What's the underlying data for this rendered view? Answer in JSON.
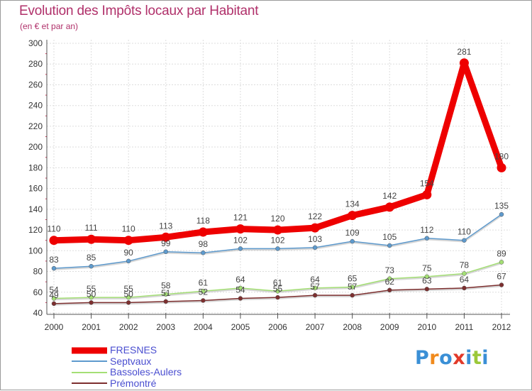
{
  "title": "Evolution des Impôts locaux par Habitant",
  "subtitle": "(en € et par an)",
  "logo": "Proxiti",
  "chart_data": {
    "type": "line",
    "title": "Evolution des Impôts locaux par Habitant",
    "subtitle": "(en € et par an)",
    "xlabel": "",
    "ylabel": "",
    "x": [
      "2000",
      "2001",
      "2002",
      "2003",
      "2004",
      "2005",
      "2006",
      "2007",
      "2008",
      "2009",
      "2010",
      "2011",
      "2012"
    ],
    "ylim": [
      40,
      300
    ],
    "yticks": [
      40,
      60,
      80,
      100,
      120,
      140,
      160,
      180,
      200,
      220,
      240,
      260,
      280,
      300
    ],
    "legend_position": "bottom-left",
    "series": [
      {
        "name": "FRESNES",
        "color": "#ee0000",
        "width": 9,
        "values": [
          110,
          111,
          110,
          113,
          118,
          121,
          120,
          122,
          134,
          142,
          154,
          281,
          180
        ]
      },
      {
        "name": "Septvaux",
        "color": "#5e9acd",
        "width": 1.5,
        "values": [
          83,
          85,
          90,
          99,
          98,
          102,
          102,
          103,
          109,
          105,
          112,
          110,
          135
        ]
      },
      {
        "name": "Bassoles-Aulers",
        "color": "#a4df75",
        "width": 1.5,
        "values": [
          54,
          55,
          55,
          58,
          61,
          64,
          61,
          64,
          65,
          73,
          75,
          78,
          89
        ]
      },
      {
        "name": "Prémontré",
        "color": "#7d2f2f",
        "width": 1.5,
        "values": [
          49,
          50,
          50,
          51,
          52,
          54,
          55,
          57,
          57,
          62,
          63,
          64,
          67
        ]
      }
    ]
  }
}
